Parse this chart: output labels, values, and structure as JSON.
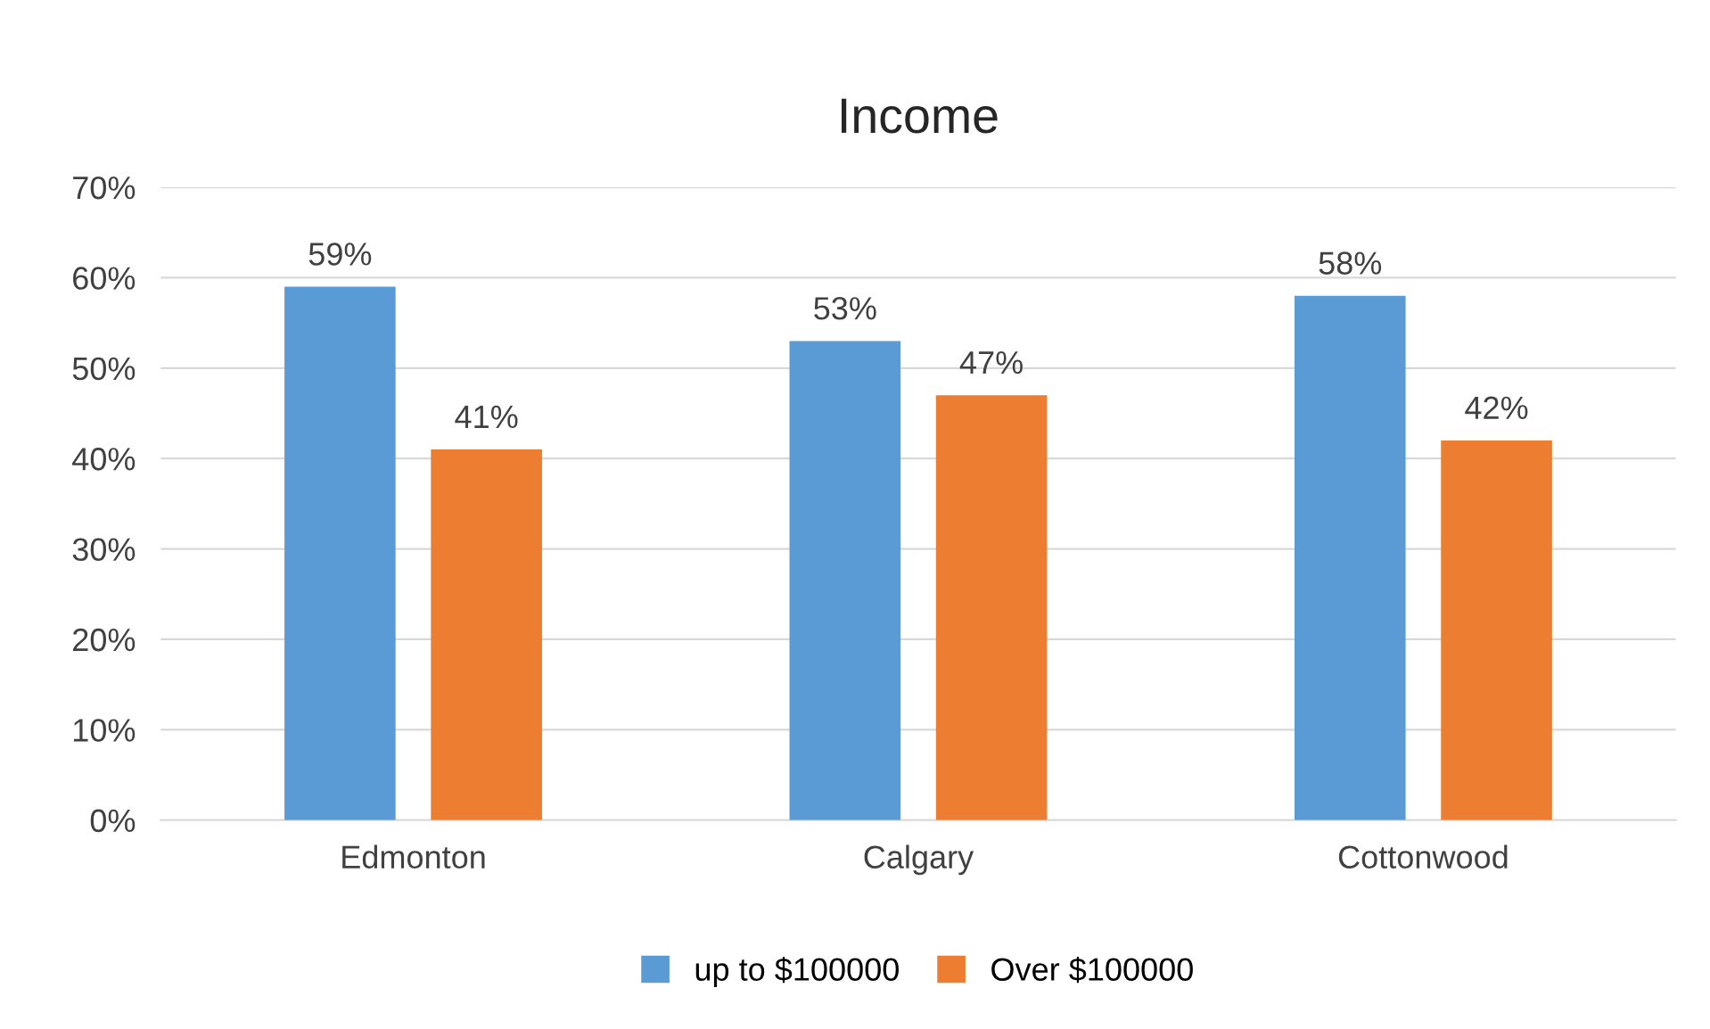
{
  "chart_data": {
    "type": "bar",
    "title": "Income",
    "categories": [
      "Edmonton",
      "Calgary",
      "Cottonwood"
    ],
    "series": [
      {
        "name": "up to $100000",
        "color": "#5b9bd5",
        "values": [
          59,
          53,
          58
        ]
      },
      {
        "name": "Over $100000",
        "color": "#ed7d31",
        "values": [
          41,
          47,
          42
        ]
      }
    ],
    "ylim": [
      0,
      70
    ],
    "yticks": [
      {
        "value": 0,
        "label": "0%"
      },
      {
        "value": 10,
        "label": "10%"
      },
      {
        "value": 20,
        "label": "20%"
      },
      {
        "value": 30,
        "label": "30%"
      },
      {
        "value": 40,
        "label": "40%"
      },
      {
        "value": 50,
        "label": "50%"
      },
      {
        "value": 60,
        "label": "60%"
      },
      {
        "value": 70,
        "label": "70%"
      }
    ],
    "grid": "y",
    "legend": "bottom",
    "value_labels": [
      [
        "59%",
        "53%",
        "58%"
      ],
      [
        "41%",
        "47%",
        "42%"
      ]
    ]
  }
}
